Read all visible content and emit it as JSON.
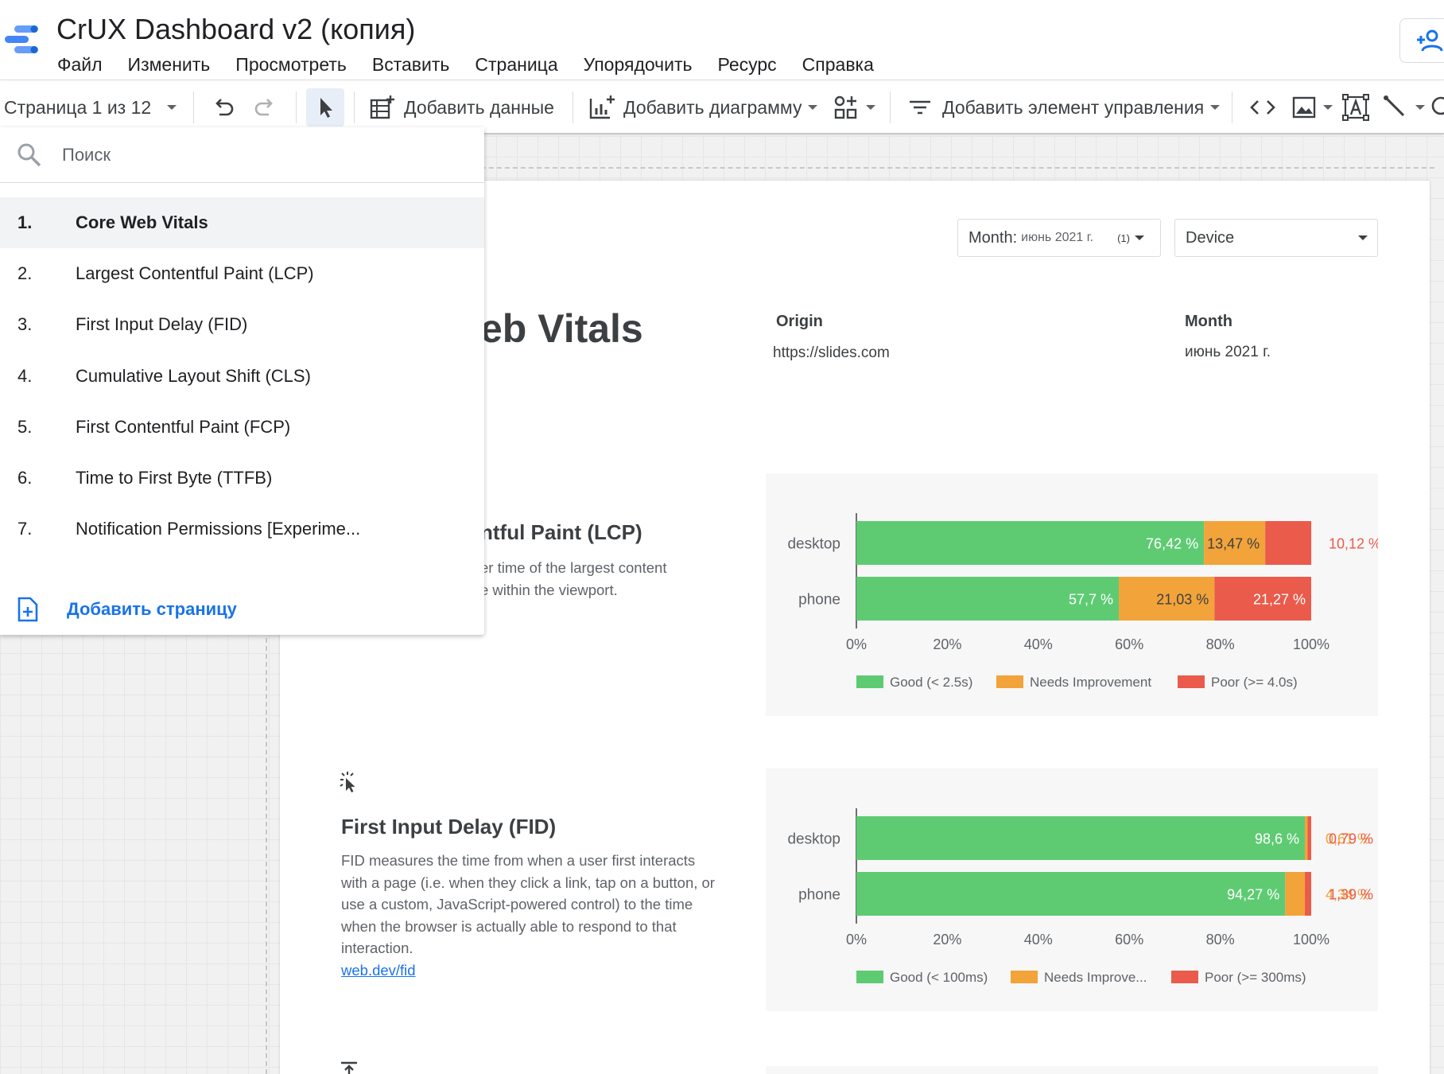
{
  "app": {
    "title": "CrUX Dashboard v2 (копия)",
    "menu": [
      "Файл",
      "Изменить",
      "Просмотреть",
      "Вставить",
      "Страница",
      "Упорядочить",
      "Ресурс",
      "Справка"
    ]
  },
  "toolbar": {
    "page_indicator": "Страница 1 из 12",
    "add_data": "Добавить данные",
    "add_chart": "Добавить диаграмму",
    "add_control": "Добавить элемент управления"
  },
  "page_menu": {
    "search_placeholder": "Поиск",
    "pages": [
      {
        "num": "1.",
        "label": "Core Web Vitals"
      },
      {
        "num": "2.",
        "label": "Largest Contentful Paint (LCP)"
      },
      {
        "num": "3.",
        "label": "First Input Delay (FID)"
      },
      {
        "num": "4.",
        "label": "Cumulative Layout Shift (CLS)"
      },
      {
        "num": "5.",
        "label": "First Contentful Paint (FCP)"
      },
      {
        "num": "6.",
        "label": "Time to First Byte (TTFB)"
      },
      {
        "num": "7.",
        "label": "Notification Permissions [Experime..."
      }
    ],
    "add_page": "Добавить страницу"
  },
  "report": {
    "month_filter": {
      "label": "Month:",
      "value": "июнь 2021 г.",
      "count": "(1)"
    },
    "device_filter": {
      "label": "Device"
    },
    "heading_partial": "eb Vitals",
    "origin_label": "Origin",
    "origin_value": "https://slides.com",
    "month_label": "Month",
    "month_value": "июнь 2021 г.",
    "lcp": {
      "title_partial": "ntful Paint (LCP)",
      "desc_line1": "er time of the largest content",
      "desc_line2": "e within the viewport."
    },
    "fid": {
      "title": "First Input Delay (FID)",
      "desc": "FID measures the time from when a user first interacts with a page (i.e. when they click a link, tap on a button, or use a custom, JavaScript-powered control) to the time when the browser is actually able to respond to that interaction.",
      "link": "web.dev/fid"
    }
  },
  "colors": {
    "good": "#5ecb73",
    "needs": "#f2a33a",
    "poor": "#ea5b4c",
    "grid": "#e0e0e0"
  },
  "chart_data": [
    {
      "type": "bar",
      "orientation": "horizontal",
      "stacked": true,
      "categories": [
        "desktop",
        "phone"
      ],
      "series": [
        {
          "name": "Good (< 2.5s)",
          "values": [
            76.42,
            57.7
          ],
          "labels": [
            "76,42 %",
            "57,7 %"
          ]
        },
        {
          "name": "Needs Improvement",
          "values": [
            13.47,
            21.03
          ],
          "labels": [
            "13,47 %",
            "21,03 %"
          ]
        },
        {
          "name": "Poor (>= 4.0s)",
          "values": [
            10.12,
            21.27
          ],
          "labels": [
            "10,12 %",
            "21,27 %"
          ]
        }
      ],
      "xticks": [
        "0%",
        "20%",
        "40%",
        "60%",
        "80%",
        "100%"
      ],
      "xlim": [
        0,
        100
      ],
      "legend": "bottom"
    },
    {
      "type": "bar",
      "orientation": "horizontal",
      "stacked": true,
      "categories": [
        "desktop",
        "phone"
      ],
      "series": [
        {
          "name": "Good (< 100ms)",
          "values": [
            98.6,
            94.27
          ],
          "labels": [
            "98,6 %",
            "94,27 %"
          ]
        },
        {
          "name": "Needs Improve...",
          "values": [
            0.61,
            4.34
          ],
          "labels": [
            "0,61 %",
            "4,34 %"
          ]
        },
        {
          "name": "Poor (>= 300ms)",
          "values": [
            0.79,
            1.39
          ],
          "labels": [
            "0,79 %",
            "1,39 %"
          ]
        }
      ],
      "xticks": [
        "0%",
        "20%",
        "40%",
        "60%",
        "80%",
        "100%"
      ],
      "xlim": [
        0,
        100
      ],
      "legend": "bottom"
    }
  ]
}
